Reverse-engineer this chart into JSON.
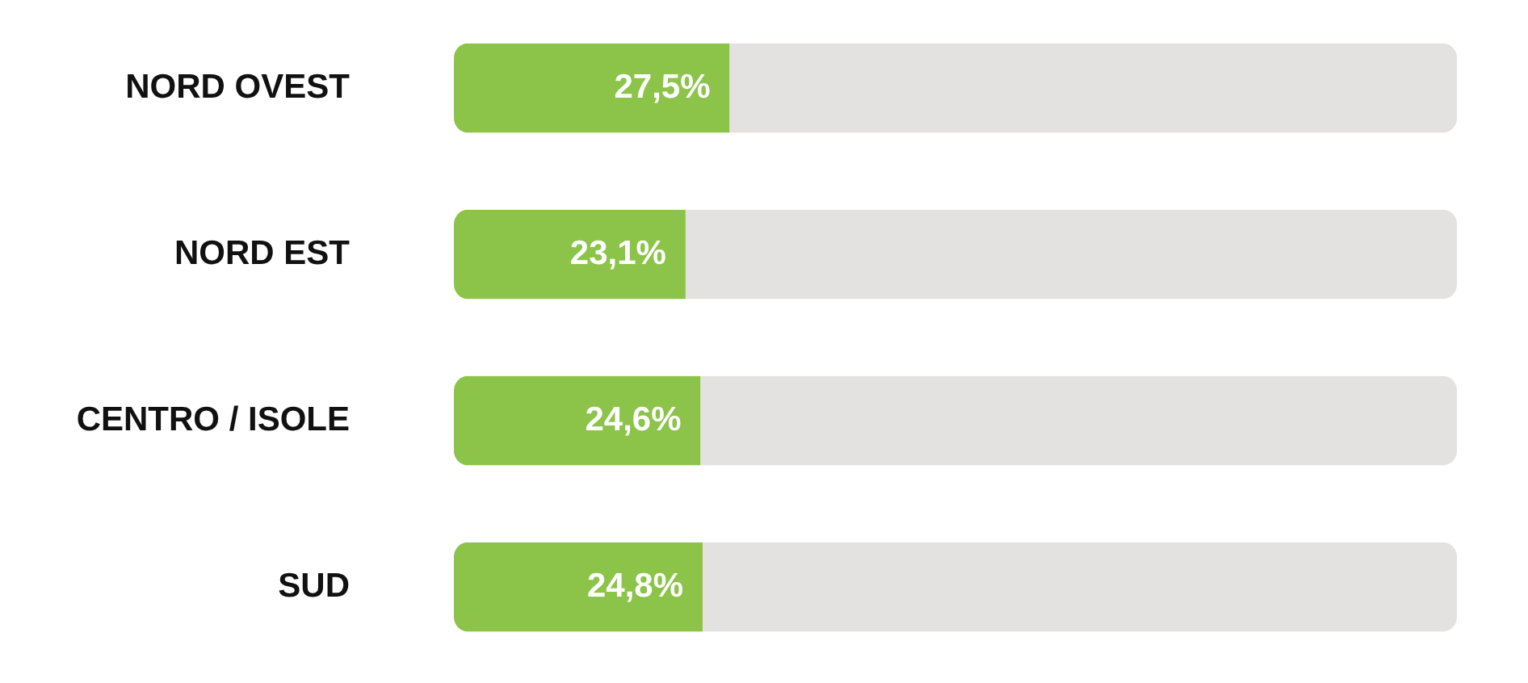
{
  "chart_data": {
    "type": "bar",
    "orientation": "horizontal",
    "stacked": true,
    "categories": [
      "NORD OVEST",
      "NORD EST",
      "CENTRO / ISOLE",
      "SUD"
    ],
    "series": [
      {
        "color": "#8cc44a",
        "values": [
          27.5,
          23.1,
          24.6,
          24.8
        ],
        "value_labels": [
          "27,5%",
          "23,1%",
          "24,6%",
          "24,8%"
        ]
      },
      {
        "color": "#e4e2e0",
        "values": [
          72.5,
          76.9,
          75.4,
          75.2
        ]
      }
    ]
  }
}
